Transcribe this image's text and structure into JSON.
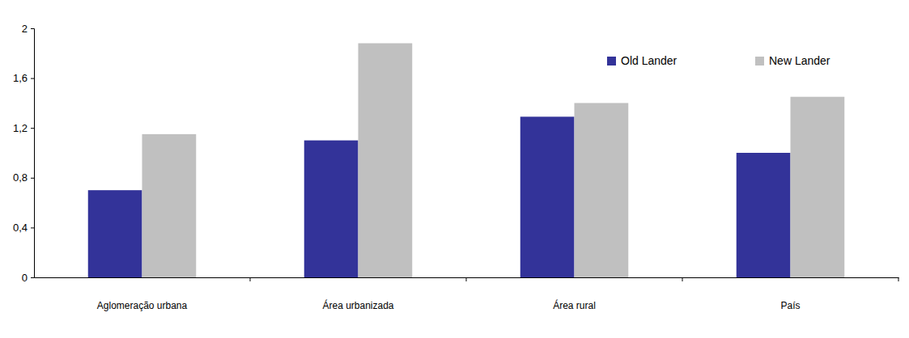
{
  "chart_data": {
    "type": "bar",
    "categories": [
      "Aglomeração urbana",
      "Área urbanizada",
      "Área rural",
      "País"
    ],
    "series": [
      {
        "name": "Old Lander",
        "color": "#333399",
        "values": [
          0.7,
          1.1,
          1.29,
          1.0
        ]
      },
      {
        "name": "New Lander",
        "color": "#c0c0c0",
        "values": [
          1.15,
          1.88,
          1.4,
          1.45
        ]
      }
    ],
    "ylim": [
      0,
      2
    ],
    "yticks": [
      0,
      {
        "value": 0.4,
        "label": "0,4"
      },
      {
        "value": 0.8,
        "label": "0,8"
      },
      {
        "value": 1.2,
        "label": "1,2"
      },
      {
        "value": 1.6,
        "label": "1,6"
      },
      2
    ],
    "grid": false,
    "legend": "top-right"
  }
}
